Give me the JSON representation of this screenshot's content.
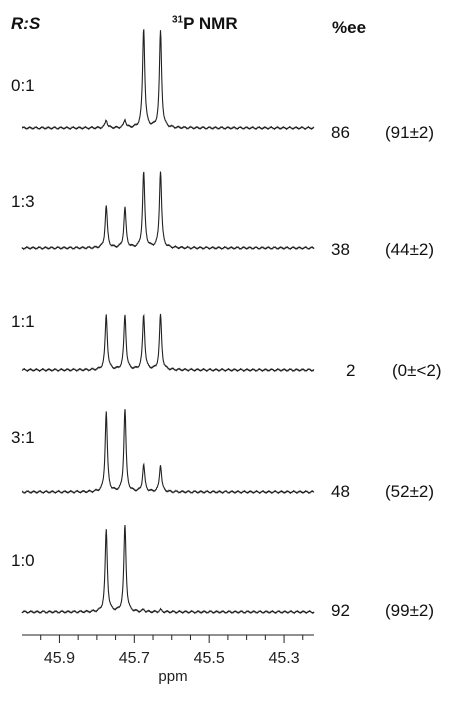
{
  "header": {
    "ratio_label": "R:S",
    "nmr_sup": "31",
    "nmr_label": "P NMR",
    "ee_label": "%ee"
  },
  "chart_data": {
    "type": "line",
    "title": "31P NMR",
    "xlabel": "ppm",
    "x_ticks": [
      "45.9",
      "45.7",
      "45.5",
      "45.3"
    ],
    "x_range": [
      46.0,
      45.22
    ],
    "x_reversed": true,
    "peak_positions_ppm": [
      45.775,
      45.725,
      45.675,
      45.63
    ],
    "series": [
      {
        "name": "0:1",
        "ratio": "0:1",
        "ee": "86",
        "ee_paren": "(91±2)",
        "peak_heights": [
          0.08,
          0.08,
          1.0,
          0.97
        ]
      },
      {
        "name": "1:3",
        "ratio": "1:3",
        "ee": "38",
        "ee_paren": "(44±2)",
        "peak_heights": [
          0.42,
          0.4,
          0.76,
          0.77
        ]
      },
      {
        "name": "1:1",
        "ratio": "1:1",
        "ee": "2",
        "ee_paren": "(0±<2)",
        "peak_heights": [
          0.55,
          0.55,
          0.55,
          0.55
        ]
      },
      {
        "name": "3:1",
        "ratio": "3:1",
        "ee": "48",
        "ee_paren": "(52±2)",
        "peak_heights": [
          0.8,
          0.83,
          0.27,
          0.27
        ]
      },
      {
        "name": "1:0",
        "ratio": "1:0",
        "ee": "92",
        "ee_paren": "(99±2)",
        "peak_heights": [
          0.82,
          0.87,
          0.02,
          0.02
        ]
      }
    ]
  }
}
